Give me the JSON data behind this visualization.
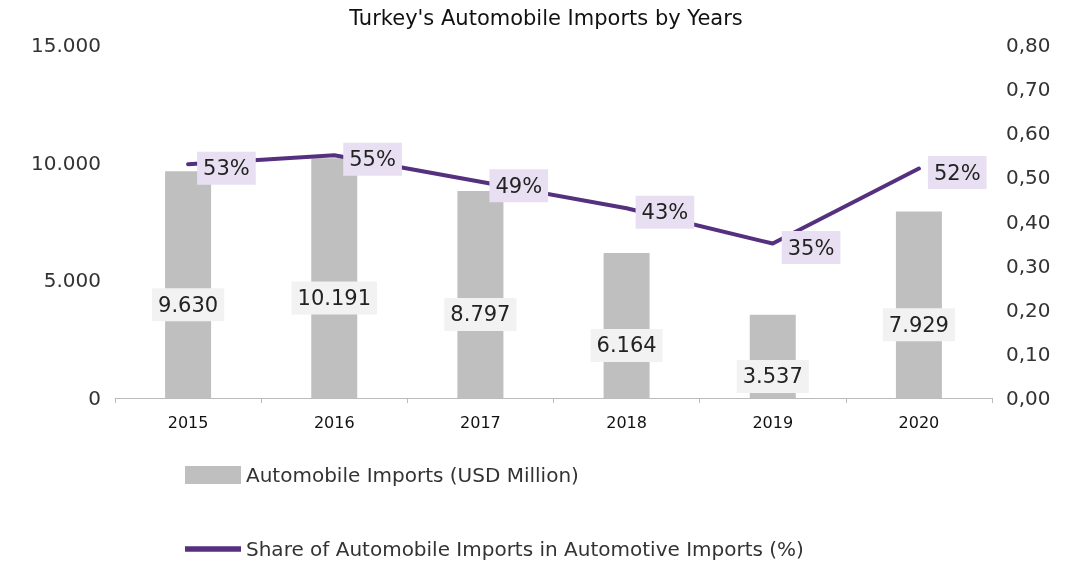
{
  "chart_data": {
    "type": "bar",
    "title": "Turkey's Automobile Imports by Years",
    "categories": [
      "2015",
      "2016",
      "2017",
      "2018",
      "2019",
      "2020"
    ],
    "series": [
      {
        "name": "Automobile Imports (USD Million)",
        "color": "#bfbfbf",
        "values": [
          9630,
          10191,
          8797,
          6164,
          3537,
          7929
        ],
        "value_labels": [
          "9.630",
          "10.191",
          "8.797",
          "6.164",
          "3.537",
          "7.929"
        ]
      },
      {
        "name": "Share of Automobile Imports in Automotive Imports (%)",
        "type": "line",
        "axis": "y2",
        "color": "#55307f",
        "marker": "none",
        "line_style": "solid",
        "values": [
          0.53,
          0.55,
          0.49,
          0.43,
          0.35,
          0.52
        ],
        "value_labels": [
          "53%",
          "55%",
          "49%",
          "43%",
          "35%",
          "52%"
        ]
      }
    ],
    "ylim": [
      0,
      15000
    ],
    "yticks": [
      {
        "value": 0,
        "label": "0"
      },
      {
        "value": 5000,
        "label": "5.000"
      },
      {
        "value": 10000,
        "label": "10.000"
      },
      {
        "value": 15000,
        "label": "15.000"
      }
    ],
    "y2lim": [
      0,
      0.8
    ],
    "y2ticks": [
      {
        "value": 0,
        "label": "0,00"
      },
      {
        "value": 0.1,
        "label": "0,10"
      },
      {
        "value": 0.2,
        "label": "0,20"
      },
      {
        "value": 0.3,
        "label": "0,30"
      },
      {
        "value": 0.4,
        "label": "0,40"
      },
      {
        "value": 0.5,
        "label": "0,50"
      },
      {
        "value": 0.6,
        "label": "0,60"
      },
      {
        "value": 0.7,
        "label": "0,70"
      },
      {
        "value": 0.8,
        "label": "0,80"
      }
    ],
    "grid": false,
    "legend": "bottom"
  }
}
